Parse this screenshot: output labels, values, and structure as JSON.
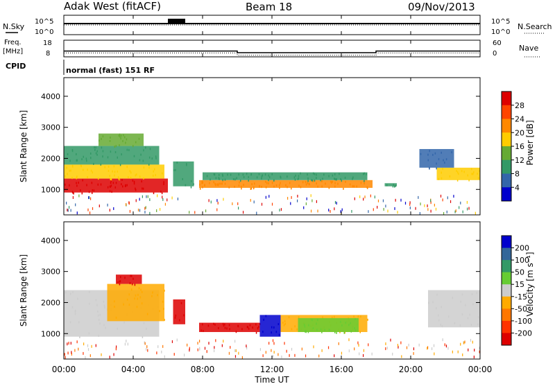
{
  "header": {
    "station": "Adak West (fitACF)",
    "beam": "Beam 18",
    "date": "09/Nov/2013"
  },
  "noise_panel": {
    "left_label": "N.Sky",
    "right_label": "N.Search",
    "left_ticks": [
      "10^5",
      "10^0"
    ],
    "right_ticks": [
      "10^5",
      "10^0"
    ]
  },
  "freq_panel": {
    "left_label_1": "Freq.",
    "left_label_2": "[MHz]",
    "right_label": "Nave",
    "left_ticks": [
      "18",
      "8"
    ],
    "right_ticks": [
      "60",
      "0"
    ],
    "freq_mhz": [
      {
        "t": 0,
        "v": 11.5
      },
      {
        "t": 10,
        "v": 11.5
      },
      {
        "t": 10,
        "v": 10.5
      },
      {
        "t": 18,
        "v": 10.5
      },
      {
        "t": 18,
        "v": 11.5
      },
      {
        "t": 24,
        "v": 11.5
      }
    ],
    "nave": [
      {
        "t": 0,
        "v": 14
      },
      {
        "t": 10,
        "v": 14
      },
      {
        "t": 10,
        "v": 6
      },
      {
        "t": 18,
        "v": 6
      },
      {
        "t": 18,
        "v": 14
      },
      {
        "t": 24,
        "v": 14
      }
    ]
  },
  "cpid_panel": {
    "label": "CPID",
    "text": "normal (fast) 151 RF"
  },
  "chart_data": [
    {
      "type": "heatmap",
      "name": "power",
      "ylabel": "Slant Range [km]",
      "ylim": [
        180,
        4600
      ],
      "yticks": [
        "1000",
        "2000",
        "3000",
        "4000"
      ],
      "ytick_values": [
        1000,
        2000,
        3000,
        4000
      ],
      "colorbar_label": "Power [dB]",
      "colorbar_ticks": [
        "28",
        "24",
        "20",
        "16",
        "12",
        "8",
        "4"
      ],
      "colorbar_colors": [
        "#dd0000",
        "#ff4400",
        "#ff8800",
        "#ffcc00",
        "#66aa33",
        "#339966",
        "#3366aa",
        "#0000cc"
      ],
      "echo_regions": [
        {
          "t": [
            0.0,
            6.0
          ],
          "r": [
            900,
            1350
          ],
          "level": 7
        },
        {
          "t": [
            0.0,
            5.8
          ],
          "r": [
            1350,
            1800
          ],
          "level": 4
        },
        {
          "t": [
            0.0,
            5.5
          ],
          "r": [
            1800,
            2400
          ],
          "level": 2
        },
        {
          "t": [
            2.0,
            4.6
          ],
          "r": [
            2400,
            2800
          ],
          "level": 3
        },
        {
          "t": [
            6.3,
            7.5
          ],
          "r": [
            1100,
            1900
          ],
          "level": 2
        },
        {
          "t": [
            7.8,
            17.8
          ],
          "r": [
            1050,
            1300
          ],
          "level": 5
        },
        {
          "t": [
            8.0,
            17.5
          ],
          "r": [
            1300,
            1550
          ],
          "level": 2
        },
        {
          "t": [
            18.5,
            19.2
          ],
          "r": [
            1100,
            1200
          ],
          "level": 2
        },
        {
          "t": [
            21.5,
            24.0
          ],
          "r": [
            1300,
            1700
          ],
          "level": 4
        },
        {
          "t": [
            20.5,
            22.5
          ],
          "r": [
            1700,
            2300
          ],
          "level": 1
        }
      ]
    },
    {
      "type": "heatmap",
      "name": "velocity",
      "ylabel": "Slant Range [km]",
      "ylim": [
        180,
        4600
      ],
      "yticks": [
        "1000",
        "2000",
        "3000",
        "4000"
      ],
      "ytick_values": [
        1000,
        2000,
        3000,
        4000
      ],
      "colorbar_label": "Velocity [m s⁻¹]",
      "colorbar_ticks": [
        "200",
        "100",
        "50",
        "15",
        "-15",
        "-50",
        "-100",
        "-200"
      ],
      "colorbar_colors": [
        "#0000cc",
        "#336699",
        "#339966",
        "#66cc33",
        "#cccccc",
        "#ffaa00",
        "#ff7700",
        "#ff3300",
        "#dd0000"
      ],
      "echo_regions": [
        {
          "t": [
            0.0,
            5.5
          ],
          "r": [
            900,
            2400
          ],
          "color": "#cccccc"
        },
        {
          "t": [
            2.5,
            5.8
          ],
          "r": [
            1400,
            2600
          ],
          "color": "#ffaa00"
        },
        {
          "t": [
            3.0,
            4.5
          ],
          "r": [
            2600,
            2900
          ],
          "color": "#dd0000"
        },
        {
          "t": [
            6.3,
            7.0
          ],
          "r": [
            1300,
            2100
          ],
          "color": "#dd0000"
        },
        {
          "t": [
            7.8,
            11.3
          ],
          "r": [
            1050,
            1350
          ],
          "color": "#dd0000"
        },
        {
          "t": [
            11.3,
            12.5
          ],
          "r": [
            900,
            1600
          ],
          "color": "#0000cc"
        },
        {
          "t": [
            12.5,
            17.5
          ],
          "r": [
            1050,
            1600
          ],
          "color": "#ffaa00"
        },
        {
          "t": [
            13.5,
            17.0
          ],
          "r": [
            1050,
            1500
          ],
          "color": "#66cc33"
        },
        {
          "t": [
            21.0,
            24.0
          ],
          "r": [
            1200,
            2400
          ],
          "color": "#cccccc"
        }
      ]
    }
  ],
  "x_axis": {
    "label": "Time UT",
    "ticks": [
      "00:00",
      "04:00",
      "08:00",
      "12:00",
      "16:00",
      "20:00",
      "00:00"
    ],
    "tick_hours": [
      0,
      4,
      8,
      12,
      16,
      20,
      24
    ]
  }
}
